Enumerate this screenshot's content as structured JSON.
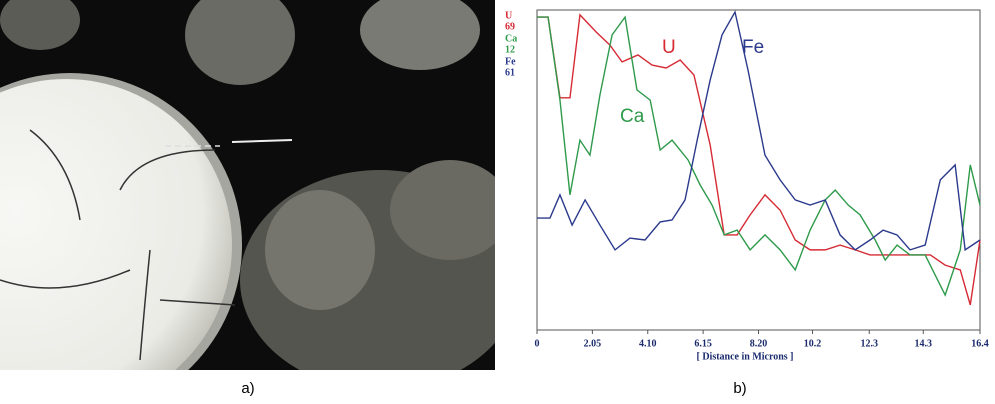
{
  "panel_labels": [
    "a)",
    "b)"
  ],
  "chart_data": {
    "type": "line",
    "xlabel": "[ Distance in Microns ]",
    "xlim": [
      0,
      16.4
    ],
    "xticks": [
      0,
      2.05,
      {
        "value": 4.1,
        "label": "4.10"
      },
      6.15,
      {
        "value": 8.2,
        "label": "8.20"
      },
      10.2,
      12.3,
      14.3,
      16.4
    ],
    "ylim": [
      0,
      100
    ],
    "series": [
      {
        "name": "U",
        "scale": "69",
        "color": "#d62b35",
        "x": [
          0,
          0.41,
          0.85,
          1.22,
          1.59,
          2.19,
          2.7,
          3.15,
          3.74,
          4.26,
          4.78,
          5.3,
          5.81,
          6.41,
          6.93,
          7.41,
          7.89,
          8.44,
          9.0,
          9.56,
          10.11,
          10.67,
          11.22,
          11.78,
          12.33,
          12.89,
          13.44,
          14.0,
          14.56,
          15.11,
          15.67,
          16.04,
          16.4
        ],
        "values": [
          98.4,
          98.4,
          73.0,
          73.0,
          99.1,
          93.7,
          89.6,
          84.3,
          86.5,
          83.3,
          82.4,
          84.9,
          80.2,
          58.2,
          29.9,
          29.9,
          36.2,
          42.5,
          37.7,
          28.3,
          25.2,
          25.2,
          26.7,
          25.2,
          23.6,
          23.6,
          23.6,
          23.6,
          23.6,
          20.4,
          18.9,
          7.9,
          28.3
        ]
      },
      {
        "name": "Ca",
        "scale": "12",
        "color": "#2e9a4a",
        "x": [
          0,
          0.41,
          0.85,
          1.22,
          1.59,
          1.96,
          2.33,
          2.78,
          3.26,
          3.7,
          4.19,
          4.56,
          5.0,
          5.59,
          6.04,
          6.48,
          6.93,
          7.41,
          7.89,
          8.44,
          9.0,
          9.56,
          10.11,
          10.67,
          11.04,
          11.52,
          11.96,
          12.52,
          12.89,
          13.33,
          13.81,
          14.37,
          15.11,
          15.67,
          16.04,
          16.4
        ],
        "values": [
          98.4,
          98.4,
          72.3,
          42.5,
          59.7,
          55.0,
          73.9,
          92.8,
          98.4,
          75.5,
          72.3,
          56.6,
          59.7,
          53.5,
          45.6,
          39.3,
          29.9,
          31.4,
          25.2,
          29.9,
          25.2,
          18.9,
          31.4,
          40.9,
          44.0,
          39.3,
          36.2,
          28.3,
          22.0,
          26.7,
          23.6,
          23.6,
          11.0,
          25.2,
          51.9,
          39.3
        ]
      },
      {
        "name": "Fe",
        "scale": "61",
        "color": "#2b3a8c",
        "x": [
          0,
          0.48,
          0.85,
          1.3,
          1.78,
          2.33,
          2.89,
          3.44,
          4.0,
          4.56,
          5.0,
          5.48,
          5.93,
          6.41,
          6.85,
          7.33,
          7.81,
          8.44,
          9.0,
          9.56,
          10.11,
          10.67,
          11.22,
          11.78,
          12.33,
          12.81,
          13.33,
          13.81,
          14.37,
          14.93,
          15.48,
          15.85,
          16.4
        ],
        "values": [
          35.2,
          35.2,
          42.5,
          33.0,
          40.9,
          33.0,
          25.2,
          28.9,
          28.3,
          34.0,
          34.6,
          40.9,
          59.7,
          78.6,
          92.8,
          100,
          81.8,
          55.0,
          47.2,
          40.9,
          39.3,
          40.9,
          29.9,
          25.2,
          28.3,
          31.4,
          29.9,
          25.2,
          26.7,
          47.2,
          51.9,
          25.2,
          28.3
        ]
      }
    ]
  }
}
